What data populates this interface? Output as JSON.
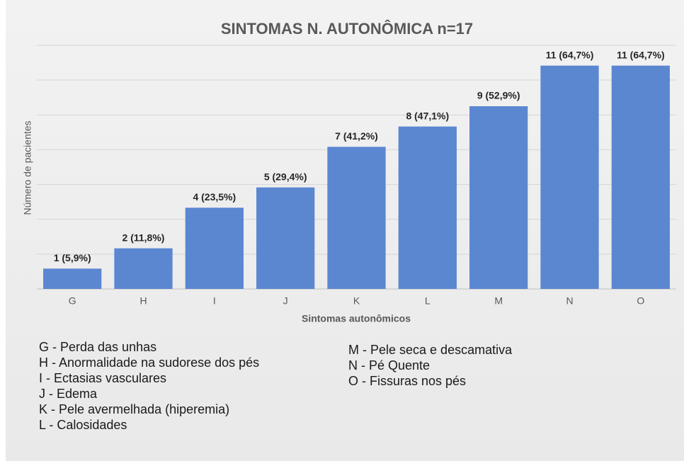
{
  "chart_data": {
    "type": "bar",
    "title": "SINTOMAS N. AUTONÔMICA n=17",
    "x_label": "Sintomas autonômicos",
    "y_label": "Número de pacientes",
    "categories": [
      "G",
      "H",
      "I",
      "J",
      "K",
      "L",
      "M",
      "N",
      "O"
    ],
    "values": [
      1,
      2,
      4,
      5,
      7,
      8,
      9,
      11,
      11
    ],
    "value_labels": [
      "1 (5,9%)",
      "2 (11,8%)",
      "4 (23,5%)",
      "5 (29,4%)",
      "7 (41,2%)",
      "8 (47,1%)",
      "9 (52,9%)",
      "11 (64,7%)",
      "11 (64,7%)"
    ],
    "color": "#5b87d1",
    "ylim": [
      0,
      12
    ],
    "yticks": [
      0,
      1.71,
      3.43,
      5.14,
      6.86,
      8.57,
      10.29,
      12
    ],
    "grid": true,
    "notes_left": [
      "G - Perda das unhas",
      "H - Anormalidade  na sudorese dos pés",
      "I - Ectasias vasculares",
      "J - Edema",
      "K - Pele avermelhada (hiperemia)",
      "L - Calosidades"
    ],
    "notes_right": [
      "M - Pele seca e descamativa",
      "N - Pé Quente",
      "O - Fissuras nos pés"
    ]
  }
}
